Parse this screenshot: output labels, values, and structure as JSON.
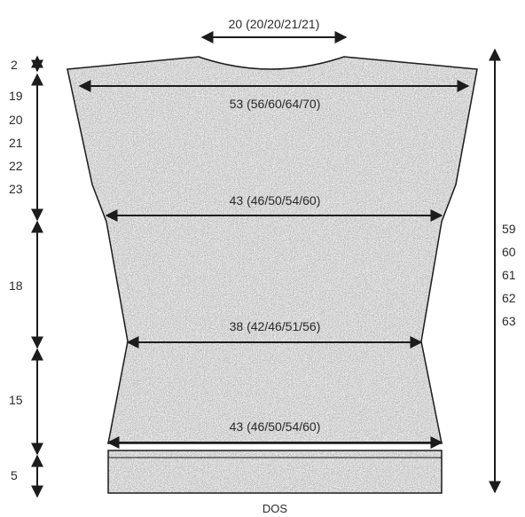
{
  "diagram": {
    "neck_width": "20 (20/20/21/21)",
    "shoulder_width": "53 (56/60/64/70)",
    "chest_width": "43 (46/50/54/60)",
    "waist_width": "38 (42/46/51/56)",
    "hip_width": "43 (46/50/54/60)",
    "caption": "DOS",
    "left_dimensions": {
      "shoulder_drop": "2",
      "armhole": [
        "19",
        "20",
        "21",
        "22",
        "23"
      ],
      "upper_body": "18",
      "lower_body": "15",
      "rib": "5"
    },
    "total_length": [
      "59",
      "60",
      "61",
      "62",
      "63"
    ]
  },
  "colors": {
    "fabric": "#b4b4b4",
    "rib": "#c2c2c2",
    "outline": "#1c1c1c",
    "ink": "#2a2a2a"
  }
}
